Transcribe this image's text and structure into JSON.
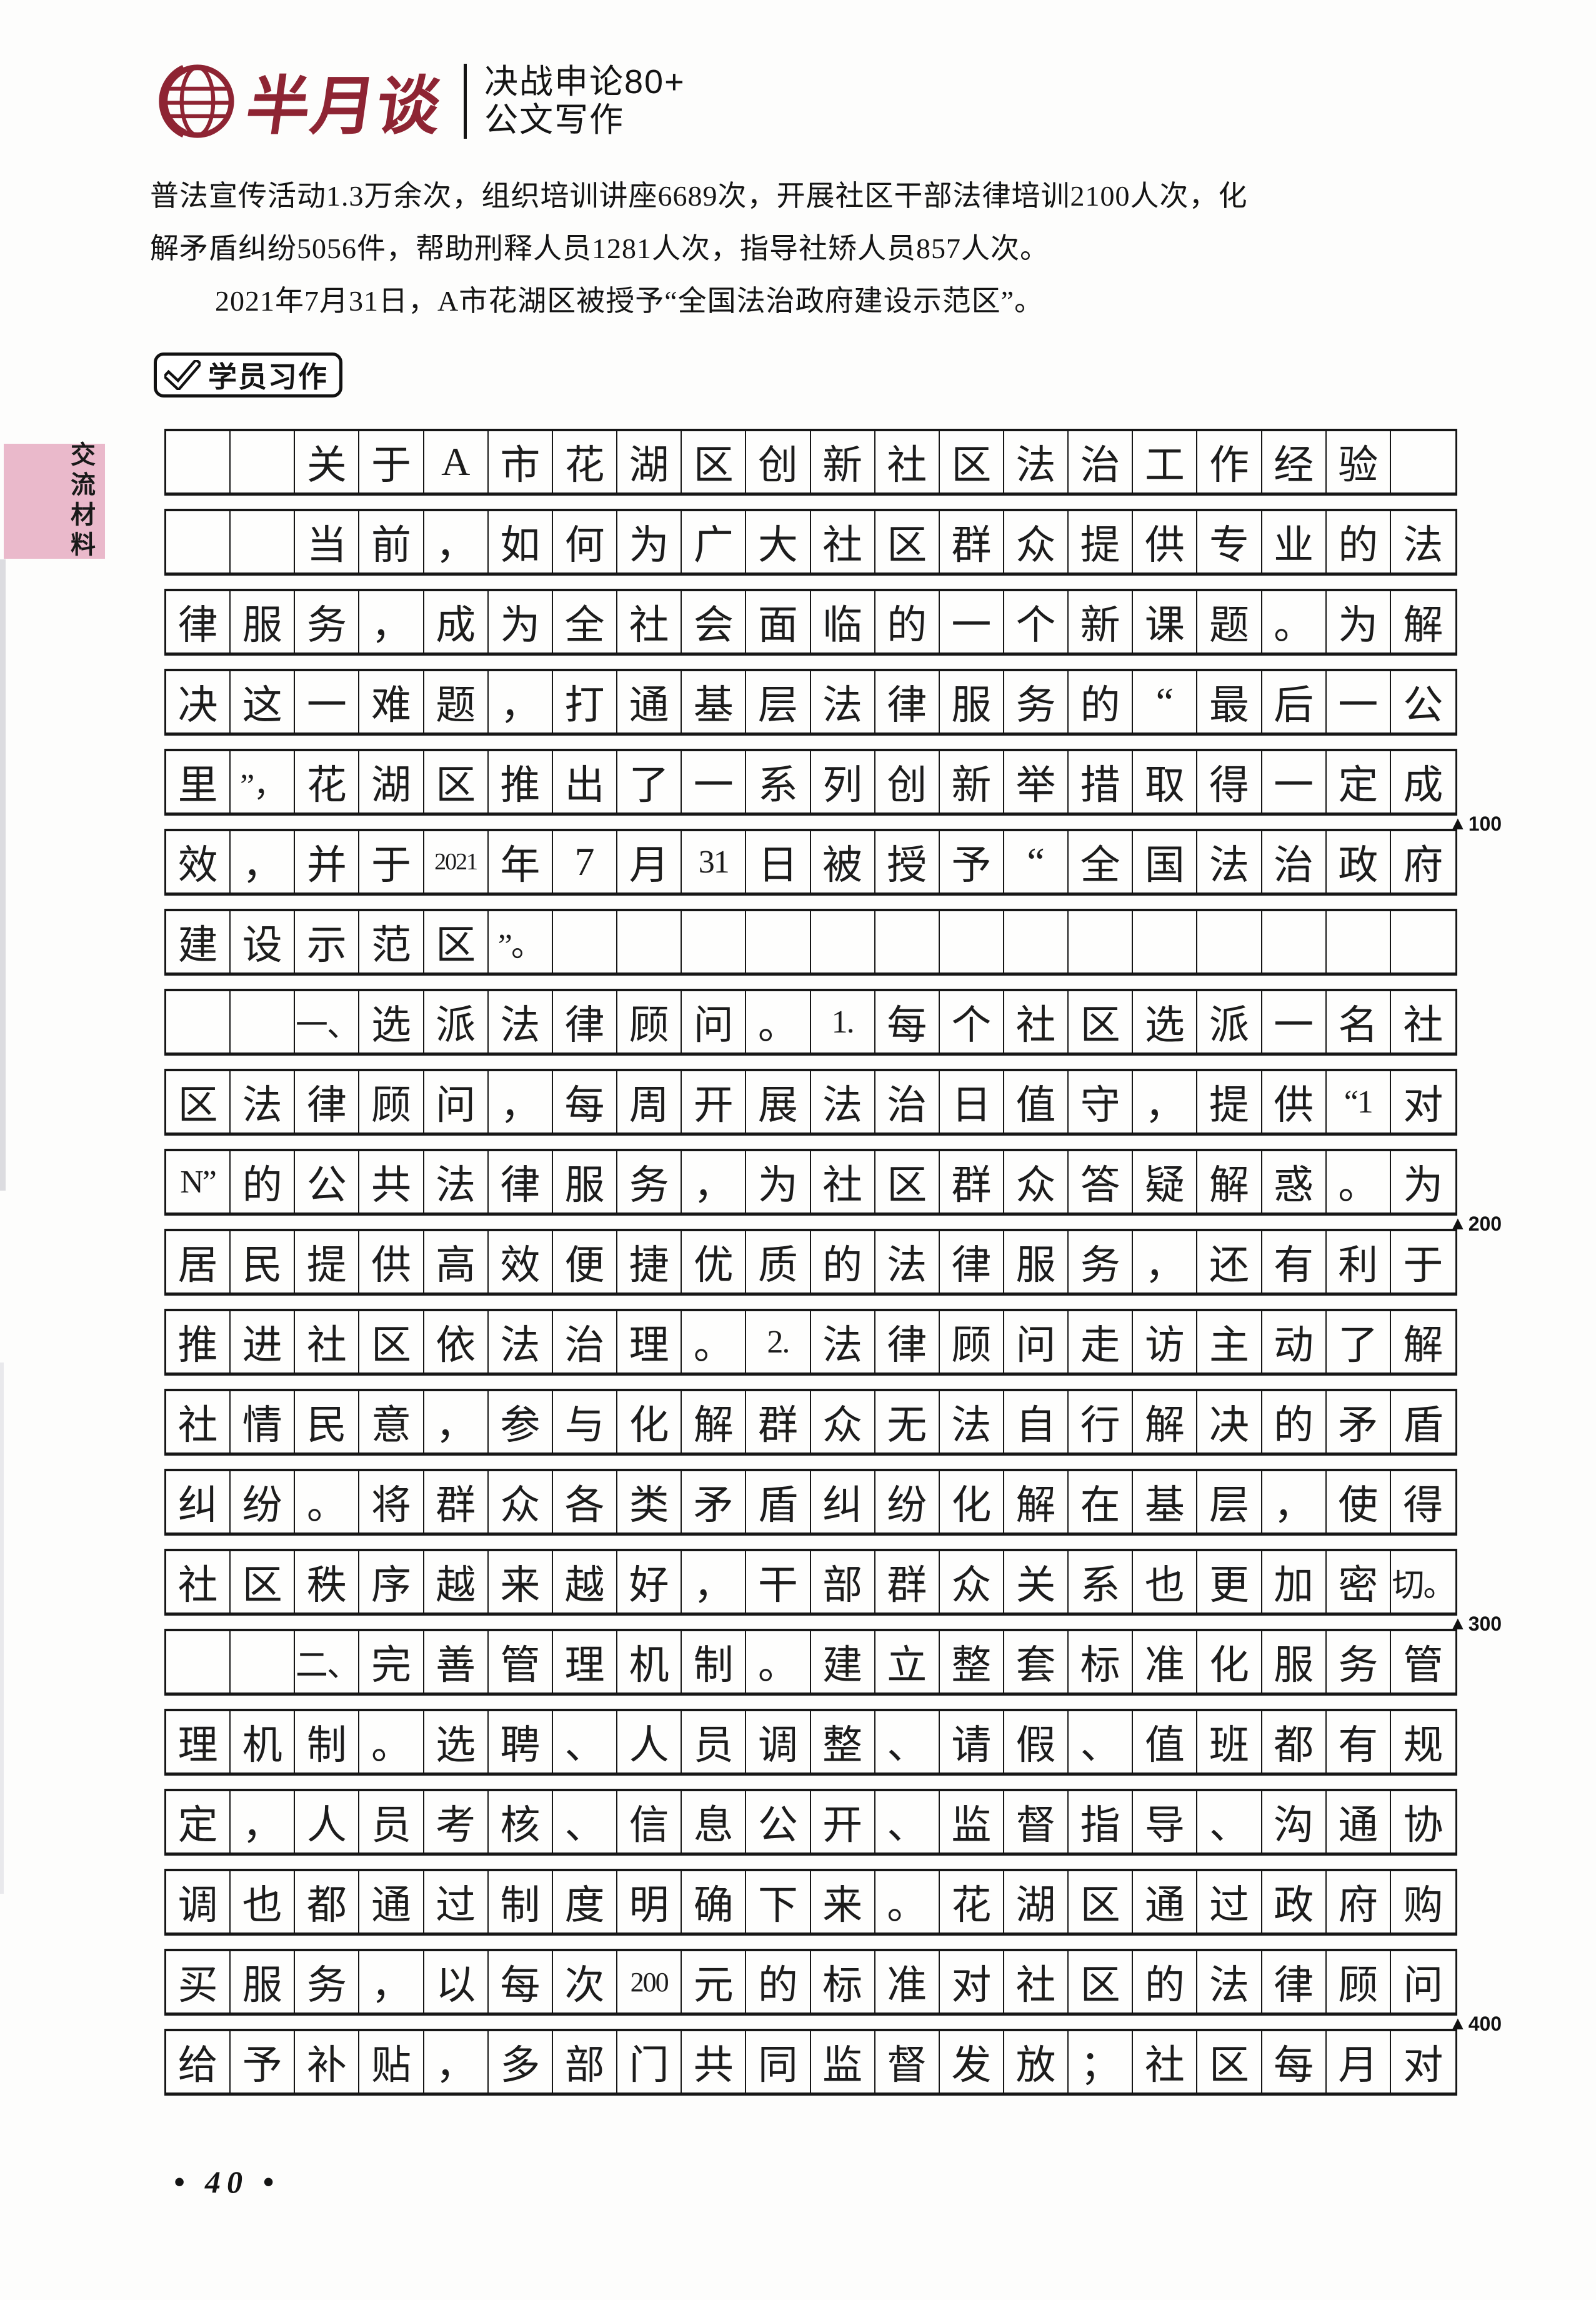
{
  "header": {
    "brand": "半月谈",
    "tagline_line1": "决战申论80+",
    "tagline_line2": "公文写作"
  },
  "side_tab": {
    "label": "交流材料"
  },
  "intro": {
    "para1_lines": [
      "普法宣传活动1.3万余次，组织培训讲座6689次，开展社区干部法律培训2100人次，化",
      "解矛盾纠纷5056件，帮助刑释人员1281人次，指导社矫人员857人次。"
    ],
    "para2": "2021年7月31日，A市花湖区被授予“全国法治政府建设示范区”。"
  },
  "badge": {
    "label": "学员习作"
  },
  "essay_grid": {
    "columns": 20,
    "rows": [
      [
        "",
        "",
        "关",
        "于",
        "A",
        "市",
        "花",
        "湖",
        "区",
        "创",
        "新",
        "社",
        "区",
        "法",
        "治",
        "工",
        "作",
        "经",
        "验",
        ""
      ],
      [
        "",
        "",
        "当",
        "前",
        "，",
        "如",
        "何",
        "为",
        "广",
        "大",
        "社",
        "区",
        "群",
        "众",
        "提",
        "供",
        "专",
        "业",
        "的",
        "法"
      ],
      [
        "律",
        "服",
        "务",
        "，",
        "成",
        "为",
        "全",
        "社",
        "会",
        "面",
        "临",
        "的",
        "一",
        "个",
        "新",
        "课",
        "题",
        "。",
        "为",
        "解"
      ],
      [
        "决",
        "这",
        "一",
        "难",
        "题",
        "，",
        "打",
        "通",
        "基",
        "层",
        "法",
        "律",
        "服",
        "务",
        "的",
        "“",
        "最",
        "后",
        "一",
        "公"
      ],
      [
        "里",
        "”，",
        "花",
        "湖",
        "区",
        "推",
        "出",
        "了",
        "一",
        "系",
        "列",
        "创",
        "新",
        "举",
        "措",
        "取",
        "得",
        "一",
        "定",
        "成"
      ],
      [
        "效",
        "，",
        "并",
        "于",
        "2021",
        "年",
        "7",
        "月",
        "31",
        "日",
        "被",
        "授",
        "予",
        "“",
        "全",
        "国",
        "法",
        "治",
        "政",
        "府"
      ],
      [
        "建",
        "设",
        "示",
        "范",
        "区",
        "”。",
        "",
        "",
        "",
        "",
        "",
        "",
        "",
        "",
        "",
        "",
        "",
        "",
        "",
        ""
      ],
      [
        "",
        "",
        "一、",
        "选",
        "派",
        "法",
        "律",
        "顾",
        "问",
        "。",
        "1.",
        "每",
        "个",
        "社",
        "区",
        "选",
        "派",
        "一",
        "名",
        "社"
      ],
      [
        "区",
        "法",
        "律",
        "顾",
        "问",
        "，",
        "每",
        "周",
        "开",
        "展",
        "法",
        "治",
        "日",
        "值",
        "守",
        "，",
        "提",
        "供",
        "“1",
        "对"
      ],
      [
        "N”",
        "的",
        "公",
        "共",
        "法",
        "律",
        "服",
        "务",
        "，",
        "为",
        "社",
        "区",
        "群",
        "众",
        "答",
        "疑",
        "解",
        "惑",
        "。",
        "为"
      ],
      [
        "居",
        "民",
        "提",
        "供",
        "高",
        "效",
        "便",
        "捷",
        "优",
        "质",
        "的",
        "法",
        "律",
        "服",
        "务",
        "，",
        "还",
        "有",
        "利",
        "于"
      ],
      [
        "推",
        "进",
        "社",
        "区",
        "依",
        "法",
        "治",
        "理",
        "。",
        "2.",
        "法",
        "律",
        "顾",
        "问",
        "走",
        "访",
        "主",
        "动",
        "了",
        "解"
      ],
      [
        "社",
        "情",
        "民",
        "意",
        "，",
        "参",
        "与",
        "化",
        "解",
        "群",
        "众",
        "无",
        "法",
        "自",
        "行",
        "解",
        "决",
        "的",
        "矛",
        "盾"
      ],
      [
        "纠",
        "纷",
        "。",
        "将",
        "群",
        "众",
        "各",
        "类",
        "矛",
        "盾",
        "纠",
        "纷",
        "化",
        "解",
        "在",
        "基",
        "层",
        "，",
        "使",
        "得"
      ],
      [
        "社",
        "区",
        "秩",
        "序",
        "越",
        "来",
        "越",
        "好",
        "，",
        "干",
        "部",
        "群",
        "众",
        "关",
        "系",
        "也",
        "更",
        "加",
        "密",
        "切。"
      ],
      [
        "",
        "",
        "二、",
        "完",
        "善",
        "管",
        "理",
        "机",
        "制",
        "。",
        "建",
        "立",
        "整",
        "套",
        "标",
        "准",
        "化",
        "服",
        "务",
        "管"
      ],
      [
        "理",
        "机",
        "制",
        "。",
        "选",
        "聘",
        "、",
        "人",
        "员",
        "调",
        "整",
        "、",
        "请",
        "假",
        "、",
        "值",
        "班",
        "都",
        "有",
        "规"
      ],
      [
        "定",
        "，",
        "人",
        "员",
        "考",
        "核",
        "、",
        "信",
        "息",
        "公",
        "开",
        "、",
        "监",
        "督",
        "指",
        "导",
        "、",
        "沟",
        "通",
        "协"
      ],
      [
        "调",
        "也",
        "都",
        "通",
        "过",
        "制",
        "度",
        "明",
        "确",
        "下",
        "来",
        "。",
        "花",
        "湖",
        "区",
        "通",
        "过",
        "政",
        "府",
        "购"
      ],
      [
        "买",
        "服",
        "务",
        "，",
        "以",
        "每",
        "次",
        "200",
        "元",
        "的",
        "标",
        "准",
        "对",
        "社",
        "区",
        "的",
        "法",
        "律",
        "顾",
        "问"
      ],
      [
        "给",
        "予",
        "补",
        "贴",
        "，",
        "多",
        "部",
        "门",
        "共",
        "同",
        "监",
        "督",
        "发",
        "放",
        "；",
        "社",
        "区",
        "每",
        "月",
        "对"
      ]
    ],
    "char_count_markers": [
      {
        "triangle": "▲",
        "label": "100",
        "after_row": 5
      },
      {
        "triangle": "▲",
        "label": "200",
        "after_row": 10
      },
      {
        "triangle": "▲",
        "label": "300",
        "after_row": 15
      },
      {
        "triangle": "▲",
        "label": "400",
        "after_row": 20
      }
    ]
  },
  "footer": {
    "page_number_display": "• 40 •"
  },
  "colors": {
    "brand_red": "#8e2433",
    "tab_pink": "#eab9cb",
    "ink": "#1c1c1c"
  }
}
